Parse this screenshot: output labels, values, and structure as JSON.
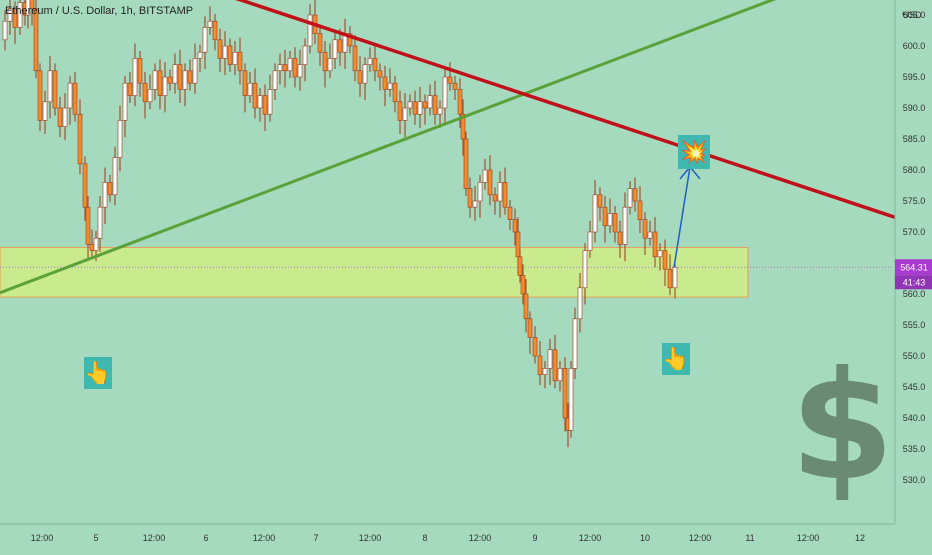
{
  "header": {
    "title": "Ethereum / U.S. Dollar, 1h, BITSTAMP"
  },
  "colors": {
    "background": "#a5dabe",
    "candle_up": "#ffffff",
    "candle_down": "#f68b2b",
    "wick": "#9a3b1f",
    "downtrend_line": "#c0101a",
    "uptrend_line": "#5aa13a",
    "support_zone": "#c9ea8d",
    "arrow": "#1f5fc5",
    "price_badge": "#a93bd1",
    "dollar_sign": "#6b8a76"
  },
  "annotations": {
    "hand_left": "👆",
    "hand_right": "👆",
    "explosion": "💥",
    "dollar": "$"
  },
  "chart_data": {
    "type": "candlestick",
    "title": "Ethereum / U.S. Dollar, 1h, BITSTAMP",
    "x_tick_labels": [
      "12:00",
      "5",
      "12:00",
      "6",
      "12:00",
      "7",
      "12:00",
      "8",
      "12:00",
      "9",
      "12:00",
      "10",
      "12:00",
      "11",
      "12:00",
      "12"
    ],
    "y_axis": {
      "unit_label": "USD",
      "ylim": [
        527.5,
        611.5
      ],
      "ticks": [
        530,
        535,
        540,
        545,
        550,
        555,
        560,
        565,
        570,
        575,
        580,
        585,
        590,
        595,
        600,
        605
      ]
    },
    "current_price": "564.31",
    "countdown": "41:43",
    "support_zone": [
      559.5,
      567.5
    ],
    "downtrend_line": {
      "points": [
        [
          0,
          612.5
        ],
        [
          146,
          612.5
        ],
        [
          930,
          570.5
        ]
      ]
    },
    "uptrend_line": {
      "points": [
        [
          0,
          560.2
        ],
        [
          855,
          612.5
        ]
      ]
    },
    "projection_arrow": {
      "from": [
        674,
        564.3
      ],
      "to": [
        690,
        580.5
      ]
    },
    "candles_close_path": [
      [
        0,
        601
      ],
      [
        5,
        604
      ],
      [
        10,
        606
      ],
      [
        15,
        603
      ],
      [
        20,
        607
      ],
      [
        25,
        605
      ],
      [
        28,
        610
      ],
      [
        32,
        606
      ],
      [
        36,
        596
      ],
      [
        40,
        588
      ],
      [
        45,
        591
      ],
      [
        50,
        596
      ],
      [
        55,
        590
      ],
      [
        60,
        587
      ],
      [
        65,
        590
      ],
      [
        70,
        594
      ],
      [
        75,
        589
      ],
      [
        80,
        581
      ],
      [
        85,
        574
      ],
      [
        88,
        568
      ],
      [
        92,
        567
      ],
      [
        96,
        569
      ],
      [
        100,
        574
      ],
      [
        105,
        578
      ],
      [
        110,
        576
      ],
      [
        115,
        582
      ],
      [
        120,
        588
      ],
      [
        125,
        594
      ],
      [
        130,
        592
      ],
      [
        135,
        598
      ],
      [
        140,
        594
      ],
      [
        145,
        591
      ],
      [
        150,
        593
      ],
      [
        155,
        596
      ],
      [
        160,
        592
      ],
      [
        165,
        595
      ],
      [
        170,
        594
      ],
      [
        175,
        597
      ],
      [
        180,
        593
      ],
      [
        185,
        596
      ],
      [
        190,
        594
      ],
      [
        195,
        598
      ],
      [
        200,
        599
      ],
      [
        205,
        603
      ],
      [
        210,
        604
      ],
      [
        215,
        601
      ],
      [
        220,
        598
      ],
      [
        225,
        600
      ],
      [
        230,
        597
      ],
      [
        235,
        599
      ],
      [
        240,
        596
      ],
      [
        245,
        592
      ],
      [
        250,
        594
      ],
      [
        255,
        590
      ],
      [
        260,
        592
      ],
      [
        265,
        589
      ],
      [
        270,
        593
      ],
      [
        275,
        596
      ],
      [
        280,
        597
      ],
      [
        285,
        596
      ],
      [
        290,
        598
      ],
      [
        295,
        595
      ],
      [
        300,
        597
      ],
      [
        305,
        600
      ],
      [
        310,
        605
      ],
      [
        315,
        602
      ],
      [
        320,
        599
      ],
      [
        325,
        596
      ],
      [
        330,
        598
      ],
      [
        335,
        601
      ],
      [
        340,
        599
      ],
      [
        345,
        602
      ],
      [
        350,
        600
      ],
      [
        355,
        596
      ],
      [
        360,
        594
      ],
      [
        365,
        597
      ],
      [
        370,
        598
      ],
      [
        375,
        596
      ],
      [
        380,
        595
      ],
      [
        385,
        593
      ],
      [
        390,
        594
      ],
      [
        395,
        591
      ],
      [
        400,
        588
      ],
      [
        405,
        590
      ],
      [
        410,
        591
      ],
      [
        415,
        589
      ],
      [
        420,
        591
      ],
      [
        425,
        590
      ],
      [
        430,
        592
      ],
      [
        435,
        589
      ],
      [
        440,
        590
      ],
      [
        445,
        595
      ],
      [
        450,
        594
      ],
      [
        455,
        593
      ],
      [
        460,
        589
      ],
      [
        463,
        585
      ],
      [
        466,
        577
      ],
      [
        470,
        574
      ],
      [
        475,
        575
      ],
      [
        480,
        578
      ],
      [
        485,
        580
      ],
      [
        490,
        576
      ],
      [
        495,
        575
      ],
      [
        500,
        578
      ],
      [
        505,
        574
      ],
      [
        510,
        572
      ],
      [
        515,
        570
      ],
      [
        518,
        566
      ],
      [
        520,
        563
      ],
      [
        523,
        560
      ],
      [
        526,
        556
      ],
      [
        530,
        553
      ],
      [
        535,
        550
      ],
      [
        540,
        547
      ],
      [
        545,
        548
      ],
      [
        550,
        551
      ],
      [
        555,
        546
      ],
      [
        560,
        548
      ],
      [
        565,
        540
      ],
      [
        568,
        538
      ],
      [
        571,
        548
      ],
      [
        575,
        556
      ],
      [
        580,
        561
      ],
      [
        585,
        567
      ],
      [
        590,
        570
      ],
      [
        595,
        576
      ],
      [
        600,
        574
      ],
      [
        605,
        571
      ],
      [
        610,
        573
      ],
      [
        615,
        570
      ],
      [
        620,
        568
      ],
      [
        625,
        574
      ],
      [
        630,
        577
      ],
      [
        635,
        575
      ],
      [
        640,
        572
      ],
      [
        645,
        569
      ],
      [
        650,
        570
      ],
      [
        655,
        566
      ],
      [
        660,
        567
      ],
      [
        665,
        564
      ],
      [
        670,
        561
      ],
      [
        675,
        564.3
      ]
    ]
  }
}
